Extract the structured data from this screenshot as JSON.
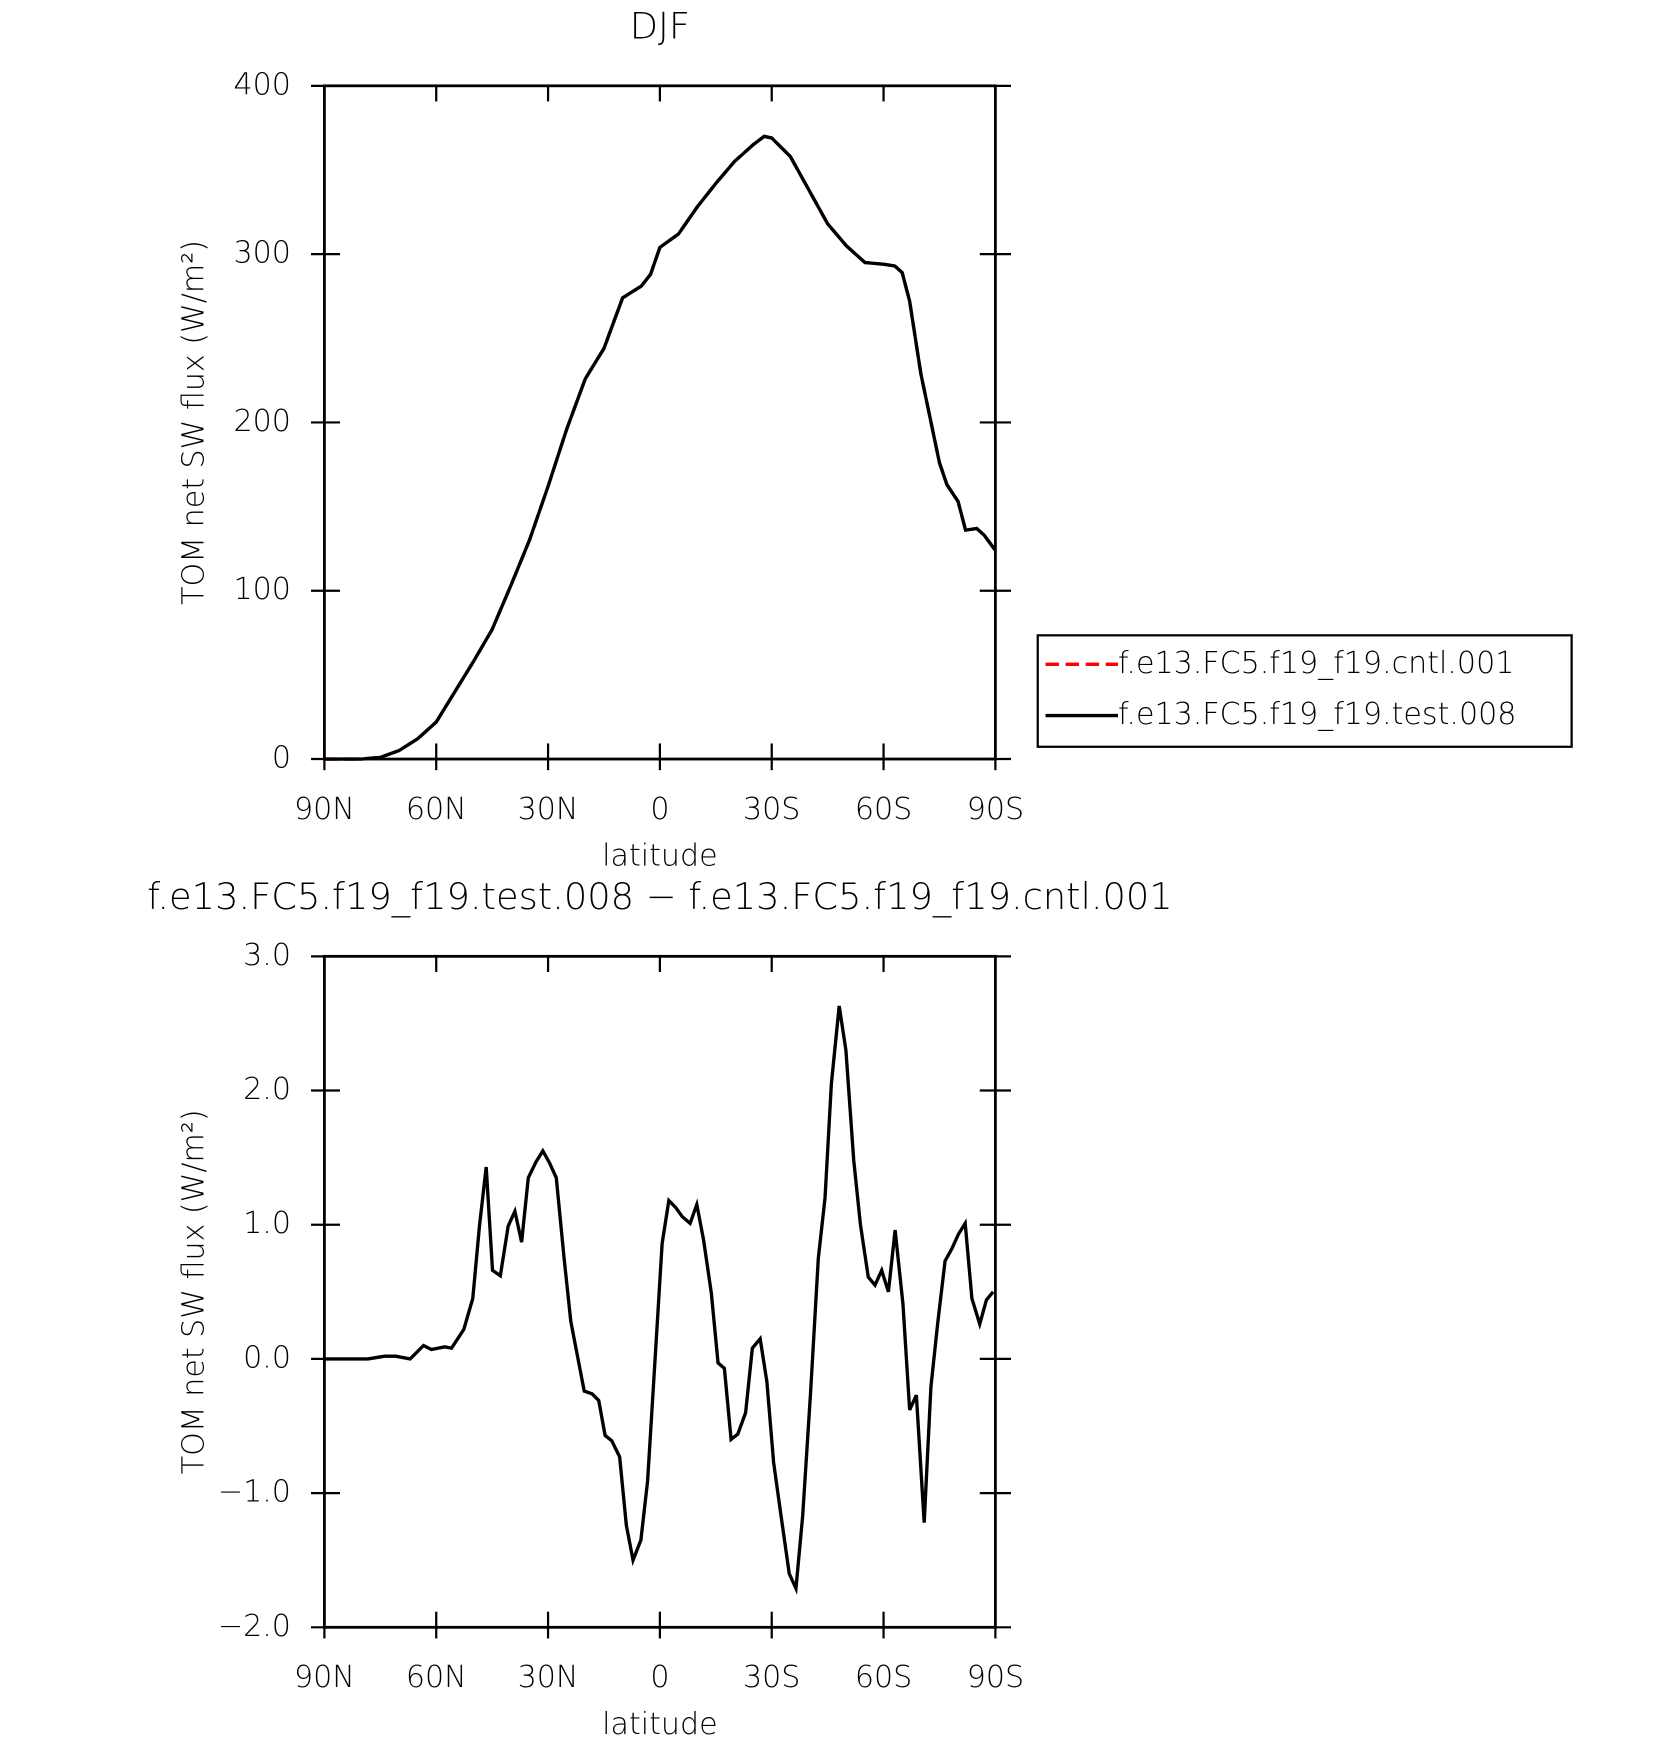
{
  "chart_data": [
    {
      "type": "line",
      "title": "DJF",
      "xlabel": "latitude",
      "ylabel": "TOM net SW flux (W/m²)",
      "xlim": [
        90,
        -90
      ],
      "xticks": [
        {
          "value": 90,
          "label": "90N"
        },
        {
          "value": 60,
          "label": "60N"
        },
        {
          "value": 30,
          "label": "30N"
        },
        0,
        {
          "value": -30,
          "label": "30S"
        },
        {
          "value": -60,
          "label": "60S"
        },
        {
          "value": -90,
          "label": "90S"
        }
      ],
      "ylim": [
        0,
        400
      ],
      "yticks": [
        0,
        100,
        200,
        300,
        400
      ],
      "legend": "right",
      "x": [
        90,
        80,
        75,
        70,
        65,
        60,
        55,
        50,
        45,
        40,
        35,
        30,
        25,
        20,
        15,
        10,
        5,
        2.5,
        0,
        -5,
        -10,
        -15,
        -20,
        -25,
        -28,
        -30,
        -35,
        -40,
        -45,
        -50,
        -55,
        -60,
        -63,
        -65,
        -67,
        -70,
        -75,
        -77,
        -80,
        -82,
        -85,
        -87,
        -90
      ],
      "series": [
        {
          "name": "f.e13.FC5.f19_f19.cntl.001",
          "color": "#ff0000",
          "style": "dashed",
          "values": [
            0,
            0,
            1,
            5,
            12,
            22,
            40,
            58,
            77,
            103,
            130,
            162,
            196,
            226,
            244,
            274,
            281,
            288,
            304,
            312,
            328,
            342,
            355,
            365,
            370,
            369,
            358,
            338,
            318,
            305,
            295,
            294,
            293,
            289,
            272,
            229,
            176,
            163,
            153,
            136,
            137,
            133,
            124
          ]
        },
        {
          "name": "f.e13.FC5.f19_f19.test.008",
          "color": "#000000",
          "style": "solid",
          "values": [
            0,
            0,
            1,
            5,
            12,
            22,
            40,
            58,
            77,
            103,
            130,
            162,
            196,
            226,
            244,
            274,
            281,
            288,
            304,
            312,
            328,
            342,
            355,
            365,
            370,
            369,
            358,
            338,
            318,
            305,
            295,
            294,
            293,
            289,
            272,
            229,
            176,
            163,
            153,
            136,
            137,
            133,
            124
          ]
        }
      ]
    },
    {
      "type": "line",
      "title": "f.e13.FC5.f19_f19.test.008 − f.e13.FC5.f19_f19.cntl.001",
      "xlabel": "latitude",
      "ylabel": "TOM net SW flux (W/m²)",
      "xlim": [
        90,
        -90
      ],
      "xticks": [
        {
          "value": 90,
          "label": "90N"
        },
        {
          "value": 60,
          "label": "60N"
        },
        {
          "value": 30,
          "label": "30N"
        },
        0,
        {
          "value": -30,
          "label": "30S"
        },
        {
          "value": -60,
          "label": "60S"
        },
        {
          "value": -90,
          "label": "90S"
        }
      ],
      "ylim": [
        -2,
        3
      ],
      "yticks": [
        {
          "value": -2,
          "label": "−2.0"
        },
        {
          "value": -1,
          "label": "−1.0"
        },
        {
          "value": 0,
          "label": "0.0"
        },
        {
          "value": 1,
          "label": "1.0"
        },
        {
          "value": 2,
          "label": "2.0"
        },
        {
          "value": 3,
          "label": "3.0"
        }
      ],
      "x": [
        90,
        78.3,
        73.9,
        70.9,
        67.0,
        63.4,
        61.3,
        57.7,
        55.9,
        52.6,
        50.2,
        48.4,
        46.6,
        44.9,
        42.8,
        40.7,
        38.9,
        37.1,
        35.3,
        33.2,
        31.4,
        29.6,
        27.8,
        25.7,
        23.9,
        22.1,
        20.3,
        18.2,
        16.4,
        14.7,
        12.9,
        10.8,
        9.0,
        7.2,
        5.1,
        3.3,
        1.2,
        -0.6,
        -2.4,
        -4.2,
        -6.0,
        -8.1,
        -9.9,
        -11.7,
        -13.8,
        -15.6,
        -17.3,
        -19.1,
        -20.9,
        -23.0,
        -24.8,
        -26.9,
        -28.7,
        -30.5,
        -32.3,
        -34.7,
        -36.5,
        -38.3,
        -40.4,
        -42.5,
        -44.3,
        -46.0,
        -48.1,
        -49.9,
        -52.0,
        -53.8,
        -55.9,
        -57.7,
        -59.5,
        -61.3,
        -63.1,
        -65.2,
        -67.0,
        -68.8,
        -70.9,
        -72.7,
        -74.5,
        -76.5,
        -78.3,
        -80.1,
        -81.9,
        -83.7,
        -85.8,
        -87.6,
        -89.4
      ],
      "series": [
        {
          "name": "f.e13.FC5.f19_f19.test.008 − f.e13.FC5.f19_f19.cntl.001",
          "color": "#000000",
          "style": "solid",
          "values": [
            0,
            0,
            0.02,
            0.02,
            0,
            0.1,
            0.07,
            0.09,
            0.08,
            0.22,
            0.45,
            0.99,
            1.43,
            0.66,
            0.62,
            0.99,
            1.1,
            0.87,
            1.35,
            1.47,
            1.55,
            1.46,
            1.35,
            0.75,
            0.28,
            0.02,
            -0.24,
            -0.26,
            -0.31,
            -0.57,
            -0.61,
            -0.73,
            -1.24,
            -1.5,
            -1.35,
            -0.91,
            0.04,
            0.86,
            1.18,
            1.13,
            1.06,
            1.01,
            1.15,
            0.89,
            0.49,
            -0.03,
            -0.07,
            -0.6,
            -0.56,
            -0.4,
            0.08,
            0.15,
            -0.17,
            -0.77,
            -1.13,
            -1.6,
            -1.71,
            -1.17,
            -0.26,
            0.75,
            1.2,
            2.05,
            2.63,
            2.3,
            1.48,
            1.0,
            0.61,
            0.55,
            0.66,
            0.5,
            0.96,
            0.41,
            -0.38,
            -0.27,
            -1.22,
            -0.21,
            0.26,
            0.73,
            0.82,
            0.93,
            1.01,
            0.45,
            0.26,
            0.44,
            0.5
          ]
        }
      ]
    }
  ]
}
